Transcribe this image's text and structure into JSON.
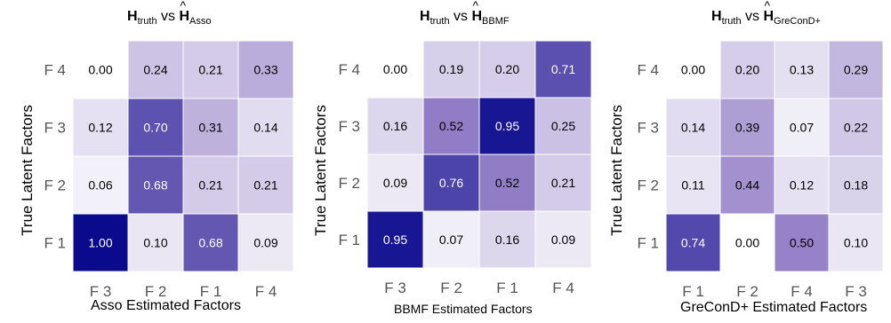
{
  "chart_data": [
    {
      "type": "heatmap",
      "title": {
        "main": "H",
        "main_sub": "truth",
        "vs": "vs",
        "hat": "H",
        "hat_sub": "Asso"
      },
      "xlabel": "Asso Estimated Factors",
      "ylabel": "True Latent Factors",
      "x_categories": [
        "F 3",
        "F 2",
        "F 1",
        "F 4"
      ],
      "y_categories": [
        "F 4",
        "F 3",
        "F 2",
        "F 1"
      ],
      "values": [
        [
          0.0,
          0.24,
          0.21,
          0.33
        ],
        [
          0.12,
          0.7,
          0.31,
          0.14
        ],
        [
          0.06,
          0.68,
          0.21,
          0.21
        ],
        [
          1.0,
          0.1,
          0.68,
          0.09
        ]
      ],
      "labels": [
        [
          "0.00",
          "0.24",
          "0.21",
          "0.33"
        ],
        [
          "0.12",
          "0.70",
          "0.31",
          "0.14"
        ],
        [
          "0.06",
          "0.68",
          "0.21",
          "0.21"
        ],
        [
          "1.00",
          "0.10",
          "0.68",
          "0.09"
        ]
      ],
      "value_range": [
        0,
        1
      ],
      "colors": {
        "low": "#ffffff",
        "high": "#0a0a8c"
      }
    },
    {
      "type": "heatmap",
      "title": {
        "main": "H",
        "main_sub": "truth",
        "vs": "vs",
        "hat": "H",
        "hat_sub": "BBMF"
      },
      "xlabel": "BBMF Estimated Factors",
      "ylabel": "True Latent Factors",
      "x_categories": [
        "F 3",
        "F 2",
        "F 1",
        "F 4"
      ],
      "y_categories": [
        "F 4",
        "F 3",
        "F 2",
        "F 1"
      ],
      "values": [
        [
          0.0,
          0.19,
          0.2,
          0.71
        ],
        [
          0.16,
          0.52,
          0.95,
          0.25
        ],
        [
          0.09,
          0.76,
          0.52,
          0.21
        ],
        [
          0.95,
          0.07,
          0.16,
          0.09
        ]
      ],
      "labels": [
        [
          "0.00",
          "0.19",
          "0.20",
          "0.71"
        ],
        [
          "0.16",
          "0.52",
          "0.95",
          "0.25"
        ],
        [
          "0.09",
          "0.76",
          "0.52",
          "0.21"
        ],
        [
          "0.95",
          "0.07",
          "0.16",
          "0.09"
        ]
      ],
      "value_range": [
        0,
        1
      ],
      "colors": {
        "low": "#ffffff",
        "high": "#0a0a8c"
      }
    },
    {
      "type": "heatmap",
      "title": {
        "main": "H",
        "main_sub": "truth",
        "vs": "vs",
        "hat": "H",
        "hat_sub": "GreConD+"
      },
      "xlabel": "GreConD+ Estimated Factors",
      "ylabel": "True Latent Factors",
      "x_categories": [
        "F 1",
        "F 2",
        "F 4",
        "F 3"
      ],
      "y_categories": [
        "F 4",
        "F 3",
        "F 2",
        "F 1"
      ],
      "values": [
        [
          0.0,
          0.2,
          0.13,
          0.29
        ],
        [
          0.14,
          0.39,
          0.07,
          0.22
        ],
        [
          0.11,
          0.44,
          0.12,
          0.18
        ],
        [
          0.74,
          0.0,
          0.5,
          0.1
        ]
      ],
      "labels": [
        [
          "0.00",
          "0.20",
          "0.13",
          "0.29"
        ],
        [
          "0.14",
          "0.39",
          "0.07",
          "0.22"
        ],
        [
          "0.11",
          "0.44",
          "0.12",
          "0.18"
        ],
        [
          "0.74",
          "0.00",
          "0.50",
          "0.10"
        ]
      ],
      "value_range": [
        0,
        1
      ],
      "colors": {
        "low": "#ffffff",
        "high": "#0a0a8c"
      }
    }
  ]
}
